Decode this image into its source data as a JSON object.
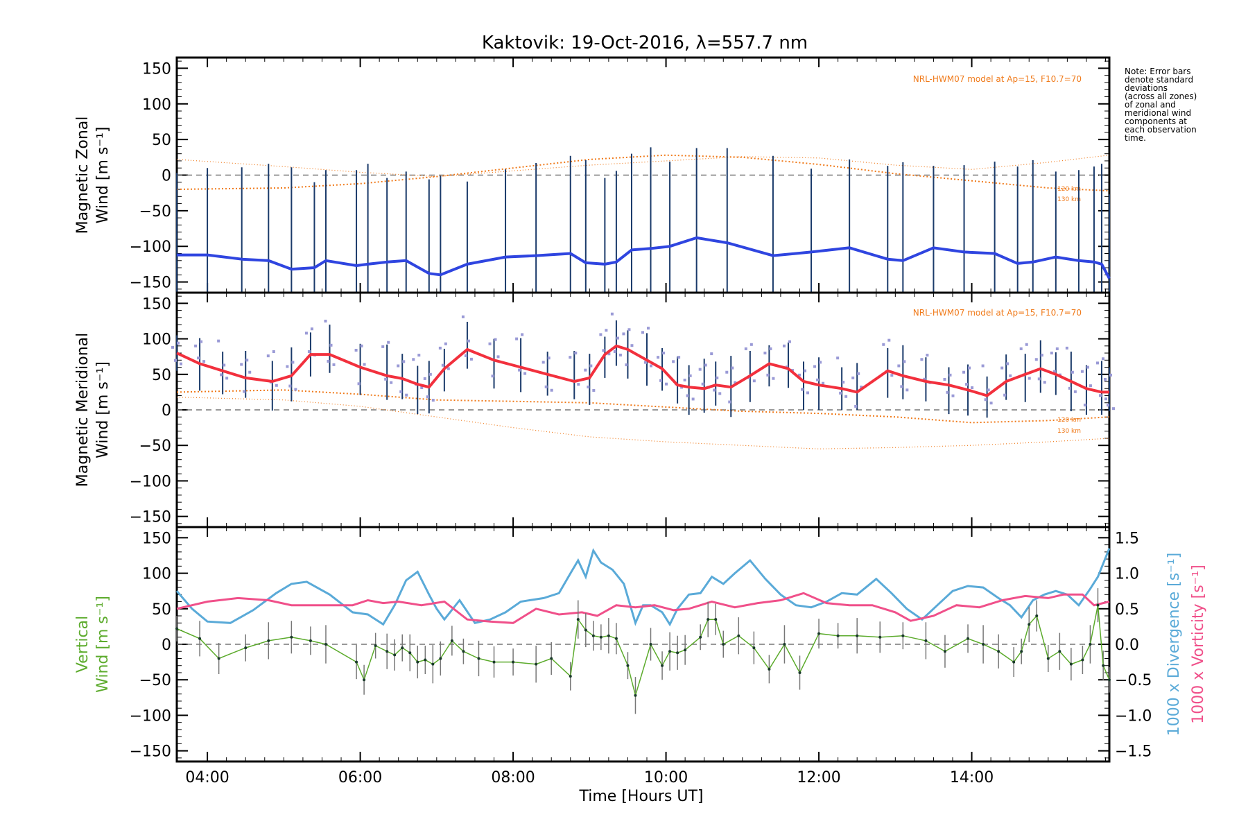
{
  "title": "Kaktovik: 19-Oct-2016, λ=557.7 nm",
  "xlabel": "Time [Hours UT]",
  "note": [
    "Note: Error bars",
    "denote standard",
    "deviations",
    "(across all zones)",
    "of zonal and",
    "meridional wind",
    "components at",
    "each observation",
    "time."
  ],
  "model_label": "NRL-HWM07 model at Ap=15, F10.7=70",
  "alt_labels": [
    "120 km",
    "130 km"
  ],
  "colors": {
    "zonal": "#2f45e0",
    "meridional": "#f2303d",
    "vertical": "#5cab2c",
    "divergence": "#5aaad8",
    "vorticity": "#f0508a",
    "model": "#f07a1a",
    "errorbar": "#1a3a6a",
    "zone_dots": "#9a9ad6",
    "zero_line": "#777777"
  },
  "chart_data": [
    {
      "type": "line",
      "panel": "zonal",
      "ylabel": [
        "Magnetic Zonal",
        "Wind [m s⁻¹]"
      ],
      "ylim": [
        -165,
        165
      ],
      "xlim": [
        3.6,
        15.8
      ],
      "xticks": [
        "04:00",
        "06:00",
        "08:00",
        "10:00",
        "12:00",
        "14:00"
      ],
      "xtick_values": [
        4,
        6,
        8,
        10,
        12,
        14
      ],
      "yticks": [
        150,
        100,
        50,
        0,
        -50,
        -100,
        -150
      ],
      "series": [
        {
          "name": "",
          "x": [
            3.6,
            4.0,
            4.45,
            4.8,
            5.1,
            5.4,
            5.55,
            5.95,
            6.1,
            6.35,
            6.6,
            6.9,
            7.05,
            7.4,
            7.9,
            8.3,
            8.75,
            8.95,
            9.2,
            9.35,
            9.55,
            9.8,
            10.05,
            10.4,
            10.8,
            11.4,
            11.9,
            12.4,
            12.9,
            13.1,
            13.5,
            13.9,
            14.3,
            14.6,
            14.8,
            15.1,
            15.4,
            15.6,
            15.7,
            15.8
          ],
          "y": [
            -112,
            -112,
            -118,
            -120,
            -132,
            -130,
            -120,
            -127,
            -125,
            -122,
            -120,
            -138,
            -140,
            -125,
            -115,
            -113,
            -110,
            -123,
            -125,
            -122,
            -105,
            -103,
            -100,
            -88,
            -95,
            -113,
            -108,
            -102,
            -118,
            -120,
            -102,
            -108,
            -110,
            -124,
            -122,
            -115,
            -120,
            -122,
            -125,
            -145
          ]
        }
      ],
      "model_series": [
        {
          "x": [
            3.6,
            5,
            6,
            7,
            8,
            9,
            10,
            11,
            12,
            13,
            14,
            15,
            15.8
          ],
          "y": [
            -20,
            -18,
            -12,
            -2,
            10,
            22,
            28,
            25,
            15,
            2,
            -8,
            -18,
            -22
          ]
        },
        {
          "x": [
            3.6,
            5,
            6,
            7,
            8,
            9,
            10,
            11,
            12,
            13,
            14,
            15,
            15.8
          ],
          "y": [
            22,
            12,
            4,
            -2,
            6,
            14,
            20,
            26,
            24,
            14,
            8,
            18,
            28
          ]
        }
      ]
    },
    {
      "type": "line",
      "panel": "meridional",
      "ylabel": [
        "Magnetic Meridional",
        "Wind [m s⁻¹]"
      ],
      "ylim": [
        -165,
        165
      ],
      "xlim": [
        3.6,
        15.8
      ],
      "yticks": [
        150,
        100,
        50,
        0,
        -50,
        -100,
        -150
      ],
      "series": [
        {
          "name": "",
          "x": [
            3.6,
            3.9,
            4.2,
            4.5,
            4.85,
            5.1,
            5.35,
            5.6,
            6.0,
            6.35,
            6.55,
            6.75,
            6.9,
            7.1,
            7.4,
            7.75,
            8.1,
            8.45,
            8.8,
            9.0,
            9.2,
            9.35,
            9.5,
            9.75,
            9.95,
            10.15,
            10.3,
            10.5,
            10.65,
            10.85,
            11.1,
            11.35,
            11.6,
            11.8,
            12.0,
            12.3,
            12.5,
            12.9,
            13.1,
            13.4,
            13.7,
            13.95,
            14.2,
            14.45,
            14.7,
            14.9,
            15.1,
            15.3,
            15.5,
            15.7,
            15.8
          ],
          "y": [
            80,
            65,
            55,
            45,
            40,
            48,
            78,
            78,
            60,
            48,
            44,
            36,
            32,
            58,
            85,
            70,
            60,
            50,
            40,
            45,
            78,
            90,
            85,
            70,
            58,
            35,
            32,
            30,
            35,
            32,
            48,
            65,
            58,
            40,
            35,
            30,
            25,
            55,
            48,
            40,
            35,
            28,
            20,
            40,
            50,
            58,
            50,
            40,
            30,
            25,
            25
          ]
        }
      ],
      "model_series": [
        {
          "x": [
            3.6,
            5,
            6,
            7,
            8,
            9,
            10,
            11,
            12,
            13,
            14,
            15,
            15.8
          ],
          "y": [
            25,
            28,
            22,
            14,
            12,
            10,
            4,
            -2,
            -5,
            -10,
            -18,
            -15,
            -10
          ]
        },
        {
          "x": [
            3.6,
            5,
            6,
            7,
            8,
            9,
            10,
            11,
            12,
            13,
            14,
            15,
            15.8
          ],
          "y": [
            18,
            14,
            5,
            -10,
            -25,
            -38,
            -45,
            -50,
            -55,
            -53,
            -50,
            -45,
            -40
          ]
        }
      ]
    },
    {
      "type": "line",
      "panel": "vertical",
      "ylabel": [
        "Vertical",
        "Wind [m s⁻¹]"
      ],
      "ylabel_right_1": "1000 x Divergence [s⁻¹]",
      "ylabel_right_2": "1000 x Vorticity [s⁻¹]",
      "ylim": [
        -165,
        165
      ],
      "y2lim": [
        -1.65,
        1.65
      ],
      "xlim": [
        3.6,
        15.8
      ],
      "yticks": [
        150,
        100,
        50,
        0,
        -50,
        -100,
        -150
      ],
      "y2ticks": [
        "1.5",
        "1.0",
        "0.5",
        "0.0",
        "-0.5",
        "-1.0",
        "-1.5"
      ],
      "y2tick_values": [
        1.5,
        1.0,
        0.5,
        0.0,
        -0.5,
        -1.0,
        -1.5
      ],
      "series": [
        {
          "name": "Vertical",
          "x": [
            3.6,
            3.9,
            4.15,
            4.5,
            4.8,
            5.1,
            5.35,
            5.55,
            5.95,
            6.05,
            6.2,
            6.35,
            6.45,
            6.55,
            6.65,
            6.75,
            6.85,
            6.95,
            7.05,
            7.2,
            7.35,
            7.55,
            7.75,
            8.0,
            8.3,
            8.5,
            8.75,
            8.85,
            8.95,
            9.05,
            9.15,
            9.25,
            9.35,
            9.5,
            9.6,
            9.8,
            9.95,
            10.05,
            10.15,
            10.25,
            10.45,
            10.55,
            10.65,
            10.75,
            10.95,
            11.15,
            11.35,
            11.55,
            11.75,
            12.0,
            12.25,
            12.5,
            12.8,
            13.1,
            13.4,
            13.65,
            13.95,
            14.15,
            14.35,
            14.55,
            14.65,
            14.75,
            14.85,
            15.0,
            15.15,
            15.3,
            15.45,
            15.55,
            15.65,
            15.72,
            15.8
          ],
          "y": [
            22,
            8,
            -20,
            -5,
            5,
            10,
            5,
            0,
            -25,
            -50,
            -2,
            -10,
            -15,
            -5,
            -12,
            -25,
            -22,
            -28,
            -20,
            5,
            -10,
            -20,
            -25,
            -25,
            -28,
            -20,
            -45,
            35,
            20,
            12,
            10,
            12,
            8,
            -30,
            -72,
            0,
            -30,
            -10,
            -12,
            -8,
            10,
            35,
            35,
            0,
            12,
            -5,
            -35,
            0,
            -40,
            15,
            12,
            12,
            10,
            12,
            5,
            -10,
            8,
            0,
            -10,
            -25,
            -10,
            28,
            40,
            -20,
            -10,
            -28,
            -22,
            0,
            55,
            -30,
            -50
          ]
        },
        {
          "name": "Divergence",
          "x": [
            3.6,
            3.8,
            4.0,
            4.3,
            4.6,
            4.9,
            5.1,
            5.3,
            5.6,
            5.9,
            6.1,
            6.3,
            6.45,
            6.6,
            6.75,
            6.9,
            7.0,
            7.1,
            7.3,
            7.5,
            7.7,
            7.9,
            8.1,
            8.4,
            8.6,
            8.75,
            8.85,
            8.95,
            9.05,
            9.15,
            9.3,
            9.45,
            9.6,
            9.7,
            9.8,
            9.95,
            10.05,
            10.15,
            10.3,
            10.45,
            10.6,
            10.75,
            10.9,
            11.1,
            11.3,
            11.5,
            11.7,
            11.9,
            12.1,
            12.3,
            12.5,
            12.75,
            12.95,
            13.15,
            13.35,
            13.55,
            13.75,
            13.95,
            14.15,
            14.35,
            14.5,
            14.65,
            14.8,
            14.95,
            15.1,
            15.25,
            15.4,
            15.55,
            15.65,
            15.8
          ],
          "y": [
            0.75,
            0.5,
            0.32,
            0.3,
            0.48,
            0.72,
            0.85,
            0.88,
            0.7,
            0.45,
            0.42,
            0.28,
            0.55,
            0.9,
            1.02,
            0.7,
            0.5,
            0.35,
            0.62,
            0.3,
            0.35,
            0.45,
            0.6,
            0.65,
            0.72,
            1.0,
            1.18,
            0.95,
            1.32,
            1.15,
            1.05,
            0.85,
            0.3,
            0.55,
            0.55,
            0.45,
            0.28,
            0.5,
            0.7,
            0.72,
            0.95,
            0.85,
            1.0,
            1.18,
            0.92,
            0.7,
            0.55,
            0.52,
            0.6,
            0.72,
            0.7,
            0.92,
            0.72,
            0.5,
            0.35,
            0.55,
            0.75,
            0.82,
            0.8,
            0.65,
            0.55,
            0.38,
            0.62,
            0.7,
            0.75,
            0.7,
            0.55,
            0.78,
            0.95,
            1.35
          ]
        },
        {
          "name": "Vorticity",
          "x": [
            3.6,
            4.0,
            4.4,
            4.8,
            5.1,
            5.5,
            5.9,
            6.1,
            6.3,
            6.5,
            6.8,
            7.1,
            7.4,
            7.7,
            8.0,
            8.3,
            8.6,
            8.9,
            9.1,
            9.35,
            9.6,
            9.85,
            10.1,
            10.3,
            10.6,
            10.9,
            11.2,
            11.5,
            11.8,
            12.1,
            12.4,
            12.7,
            13.0,
            13.2,
            13.5,
            13.8,
            14.1,
            14.4,
            14.7,
            15.0,
            15.2,
            15.45,
            15.6,
            15.8
          ],
          "y": [
            0.5,
            0.6,
            0.65,
            0.62,
            0.55,
            0.55,
            0.55,
            0.62,
            0.58,
            0.6,
            0.55,
            0.6,
            0.35,
            0.32,
            0.3,
            0.5,
            0.42,
            0.45,
            0.4,
            0.55,
            0.52,
            0.55,
            0.48,
            0.5,
            0.6,
            0.52,
            0.58,
            0.62,
            0.72,
            0.58,
            0.55,
            0.55,
            0.45,
            0.33,
            0.4,
            0.55,
            0.52,
            0.62,
            0.68,
            0.65,
            0.7,
            0.7,
            0.55,
            0.6
          ]
        }
      ]
    }
  ]
}
